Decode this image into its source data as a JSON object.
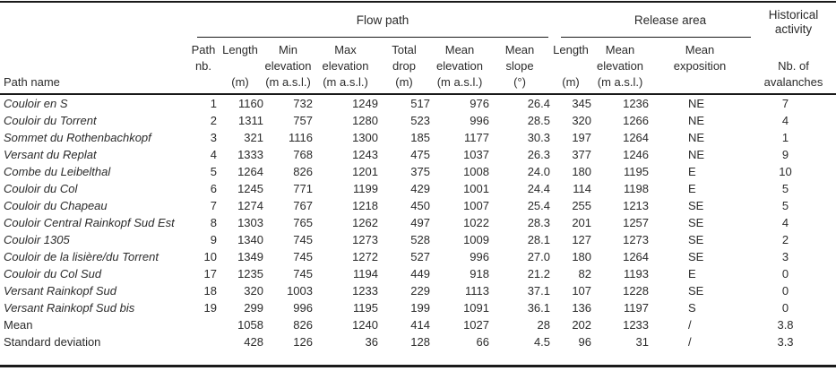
{
  "colors": {
    "background": "#ffffff",
    "text": "#2b2b2b",
    "rule": "#1a1a1a"
  },
  "table": {
    "groups": [
      {
        "id": "flow-path",
        "label": "Flow path"
      },
      {
        "id": "release-area",
        "label": "Release area"
      },
      {
        "id": "historical-activity",
        "label": "Historical activity",
        "label_lines": [
          "Historical",
          "activity"
        ]
      }
    ],
    "columns": [
      {
        "id": "path-name",
        "header_lines": [
          "Path name"
        ],
        "align": "left"
      },
      {
        "id": "path-nb",
        "header_lines": [
          "Path",
          "nb.",
          ""
        ],
        "align": "right",
        "group": "flow-path"
      },
      {
        "id": "length",
        "header_lines": [
          "Length",
          "",
          "(m)"
        ],
        "align": "right",
        "group": "flow-path"
      },
      {
        "id": "min-elevation",
        "header_lines": [
          "Min",
          "elevation",
          "(m a.s.l.)"
        ],
        "align": "right",
        "group": "flow-path"
      },
      {
        "id": "max-elevation",
        "header_lines": [
          "Max",
          "elevation",
          "(m a.s.l.)"
        ],
        "align": "right",
        "group": "flow-path"
      },
      {
        "id": "total-drop",
        "header_lines": [
          "Total",
          "drop",
          "(m)"
        ],
        "align": "right",
        "group": "flow-path"
      },
      {
        "id": "mean-elevation",
        "header_lines": [
          "Mean",
          "elevation",
          "(m a.s.l.)"
        ],
        "align": "right",
        "group": "flow-path"
      },
      {
        "id": "mean-slope",
        "header_lines": [
          "Mean",
          "slope",
          "(°)"
        ],
        "align": "right",
        "group": "flow-path"
      },
      {
        "id": "release-length",
        "header_lines": [
          "Length",
          "",
          "(m)"
        ],
        "align": "right",
        "group": "release-area"
      },
      {
        "id": "release-mean-elevation",
        "header_lines": [
          "Mean",
          "elevation",
          "(m a.s.l.)"
        ],
        "align": "right",
        "group": "release-area"
      },
      {
        "id": "mean-exposition",
        "header_lines": [
          "Mean",
          "exposition",
          ""
        ],
        "align": "left",
        "group": "release-area"
      },
      {
        "id": "nb-avalanches",
        "header_lines": [
          "",
          "Nb. of",
          "avalanches"
        ],
        "align": "center",
        "group": "historical-activity"
      }
    ],
    "rows": [
      {
        "name": "Couloir en S",
        "italic": true,
        "values": [
          "1",
          "1160",
          "732",
          "1249",
          "517",
          "976",
          "26.4",
          "345",
          "1236",
          "NE",
          "7"
        ]
      },
      {
        "name": "Couloir du Torrent",
        "italic": true,
        "values": [
          "2",
          "1311",
          "757",
          "1280",
          "523",
          "996",
          "28.5",
          "320",
          "1266",
          "NE",
          "4"
        ]
      },
      {
        "name": "Sommet du Rothenbachkopf",
        "italic": true,
        "values": [
          "3",
          "321",
          "1116",
          "1300",
          "185",
          "1177",
          "30.3",
          "197",
          "1264",
          "NE",
          "1"
        ]
      },
      {
        "name": "Versant du Replat",
        "italic": true,
        "values": [
          "4",
          "1333",
          "768",
          "1243",
          "475",
          "1037",
          "26.3",
          "377",
          "1246",
          "NE",
          "9"
        ]
      },
      {
        "name": "Combe du Leibelthal",
        "italic": true,
        "values": [
          "5",
          "1264",
          "826",
          "1201",
          "375",
          "1008",
          "24.0",
          "180",
          "1195",
          "E",
          "10"
        ]
      },
      {
        "name": "Couloir du Col",
        "italic": true,
        "values": [
          "6",
          "1245",
          "771",
          "1199",
          "429",
          "1001",
          "24.4",
          "114",
          "1198",
          "E",
          "5"
        ]
      },
      {
        "name": "Couloir du Chapeau",
        "italic": true,
        "values": [
          "7",
          "1274",
          "767",
          "1218",
          "450",
          "1007",
          "25.4",
          "255",
          "1213",
          "SE",
          "5"
        ]
      },
      {
        "name": "Couloir Central Rainkopf Sud Est",
        "italic": true,
        "values": [
          "8",
          "1303",
          "765",
          "1262",
          "497",
          "1022",
          "28.3",
          "201",
          "1257",
          "SE",
          "4"
        ]
      },
      {
        "name": "Couloir 1305",
        "italic": true,
        "values": [
          "9",
          "1340",
          "745",
          "1273",
          "528",
          "1009",
          "28.1",
          "127",
          "1273",
          "SE",
          "2"
        ]
      },
      {
        "name": "Couloir de la lisière/du Torrent",
        "italic": true,
        "values": [
          "10",
          "1349",
          "745",
          "1272",
          "527",
          "996",
          "27.0",
          "180",
          "1264",
          "SE",
          "3"
        ]
      },
      {
        "name": "Couloir du Col Sud",
        "italic": true,
        "values": [
          "17",
          "1235",
          "745",
          "1194",
          "449",
          "918",
          "21.2",
          "82",
          "1193",
          "E",
          "0"
        ]
      },
      {
        "name": "Versant Rainkopf Sud",
        "italic": true,
        "values": [
          "18",
          "320",
          "1003",
          "1233",
          "229",
          "1113",
          "37.1",
          "107",
          "1228",
          "SE",
          "0"
        ]
      },
      {
        "name": "Versant Rainkopf Sud bis",
        "italic": true,
        "values": [
          "19",
          "299",
          "996",
          "1195",
          "199",
          "1091",
          "36.1",
          "136",
          "1197",
          "S",
          "0"
        ]
      },
      {
        "name": "Mean",
        "italic": false,
        "values": [
          "",
          "1058",
          "826",
          "1240",
          "414",
          "1027",
          "28",
          "202",
          "1233",
          "/",
          "3.8"
        ]
      },
      {
        "name": "Standard deviation",
        "italic": false,
        "values": [
          "",
          "428",
          "126",
          "36",
          "128",
          "66",
          "4.5",
          "96",
          "31",
          "/",
          "3.3"
        ]
      }
    ]
  }
}
